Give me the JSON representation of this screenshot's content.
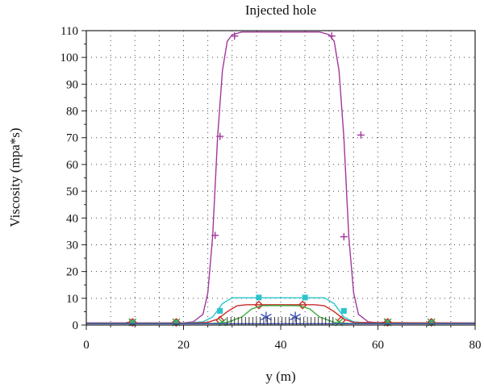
{
  "chart_data": {
    "type": "line",
    "title": "Injected hole",
    "xlabel": "y (m)",
    "ylabel": "Viscosity (mpa*s)",
    "xlim": [
      0,
      80
    ],
    "ylim": [
      0,
      110
    ],
    "x_ticks": [
      0,
      20,
      40,
      60,
      80
    ],
    "y_ticks": [
      0,
      10,
      20,
      30,
      40,
      50,
      60,
      70,
      80,
      90,
      100,
      110
    ],
    "grid": "dotted",
    "legend": "none",
    "series": [
      {
        "color": "#a0379c",
        "marker": "plus",
        "x": [
          0,
          20,
          22,
          24,
          25,
          26,
          27,
          28,
          29,
          30,
          32,
          40,
          48,
          50,
          51,
          52,
          53,
          54,
          55,
          56,
          58,
          60,
          80
        ],
        "y": [
          0.8,
          0.8,
          1.2,
          4,
          12,
          33,
          70,
          95,
          106,
          108.5,
          109.5,
          109.5,
          109.5,
          108.5,
          106,
          95,
          70,
          33,
          12,
          4,
          1.2,
          0.8,
          0.8
        ],
        "markers_x": [
          9,
          18.5,
          26.5,
          27.5,
          30.5,
          50.5,
          53,
          56.5,
          61.5,
          71
        ],
        "markers_y": [
          1,
          1,
          33.5,
          70.5,
          108,
          108,
          33,
          71,
          1,
          1
        ]
      },
      {
        "color": "#2cc4cc",
        "marker": "square",
        "x": [
          0,
          20,
          24,
          26,
          27,
          28,
          30,
          40,
          49,
          51,
          52,
          53,
          55,
          58,
          80
        ],
        "y": [
          0.7,
          0.7,
          1.2,
          3,
          5.5,
          8,
          10.2,
          10.2,
          10.2,
          8,
          5.5,
          3,
          1.2,
          0.7,
          0.7
        ],
        "markers_x": [
          9.5,
          18.5,
          27.5,
          35.5,
          45,
          53,
          62,
          71
        ],
        "markers_y": [
          1,
          1,
          5.3,
          10.3,
          10.3,
          5.3,
          1,
          1
        ]
      },
      {
        "color": "#cc2a2a",
        "marker": "diamond",
        "x": [
          0,
          20,
          25,
          27,
          29,
          31,
          33,
          40,
          47,
          49,
          51,
          53,
          55,
          80
        ],
        "y": [
          0.7,
          0.7,
          1,
          2.2,
          5,
          7.2,
          7.6,
          7.6,
          7.6,
          7.2,
          5,
          2.2,
          1,
          0.7
        ],
        "markers_x": [
          9.5,
          18.5,
          27.5,
          35.5,
          44.5,
          52.5,
          62,
          71
        ],
        "markers_y": [
          1,
          1,
          1.8,
          7.5,
          7.5,
          1.8,
          1,
          1
        ]
      },
      {
        "color": "#3cae3c",
        "marker": "x",
        "x": [
          0,
          26,
          29,
          32,
          34,
          36,
          40,
          44,
          46,
          48,
          51,
          54,
          80
        ],
        "y": [
          0.6,
          0.6,
          1,
          3,
          6,
          7.2,
          7.3,
          7.2,
          6,
          3,
          1,
          0.6,
          0.6
        ],
        "markers_x": [
          9.5,
          18.5,
          28,
          52,
          62,
          71
        ],
        "markers_y": [
          1,
          1,
          1,
          1,
          1,
          1
        ]
      },
      {
        "color": "#3a52b8",
        "marker": "asterisk",
        "x": [
          0,
          80
        ],
        "y": [
          0.5,
          0.5
        ],
        "markers_x": [
          37,
          43
        ],
        "markers_y": [
          3,
          3
        ]
      }
    ]
  }
}
